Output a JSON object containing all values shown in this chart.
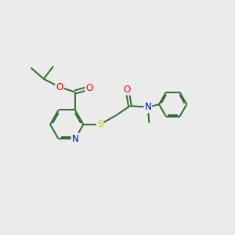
{
  "background_color": "#ebebeb",
  "bond_color": "#2d6b2d",
  "atom_colors": {
    "O": "#ff0000",
    "N": "#0000cc",
    "S": "#cccc00",
    "C": "#2d6b2d"
  },
  "figsize": [
    3.0,
    3.0
  ],
  "dpi": 100
}
